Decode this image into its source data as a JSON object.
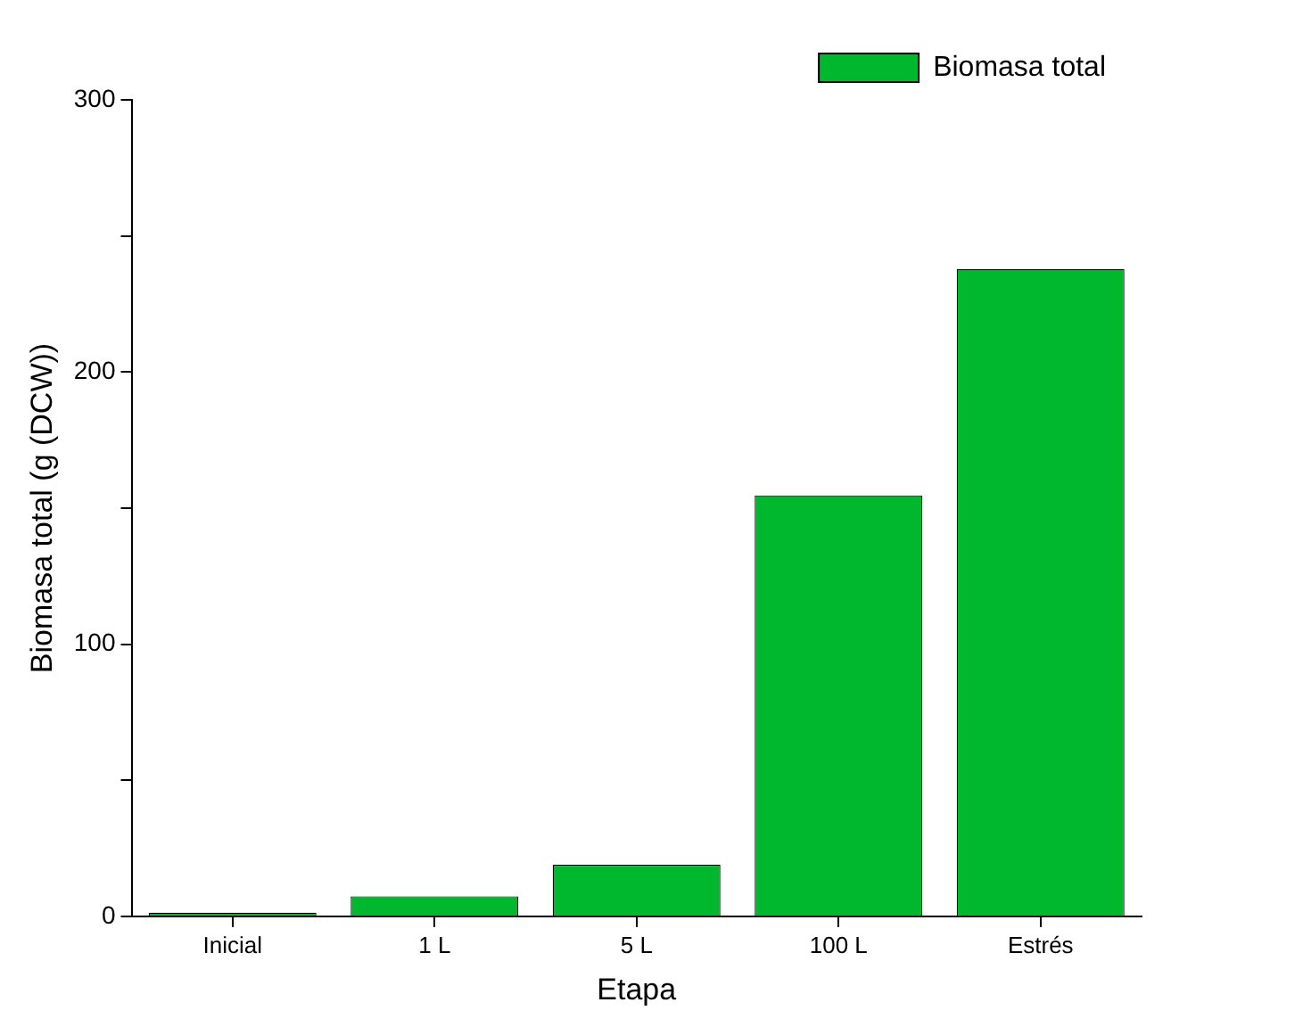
{
  "chart_data": {
    "type": "bar",
    "xlabel": "Etapa",
    "ylabel": "Biomasa total (g (DCW))",
    "categories": [
      "Inicial",
      "1 L",
      "5 L",
      "100 L",
      "Estrés"
    ],
    "series": [
      {
        "name": "Biomasa total",
        "color": "#00b82e",
        "values": [
          1.4,
          7.4,
          19,
          154.7,
          237.8
        ]
      }
    ],
    "ylim": [
      0,
      300
    ],
    "yticks": [
      0,
      {
        "value": 50,
        "label": null
      },
      100,
      {
        "value": 150,
        "label": null
      },
      200,
      {
        "value": 250,
        "label": null
      },
      300
    ],
    "grid": false,
    "legend": "top right"
  }
}
